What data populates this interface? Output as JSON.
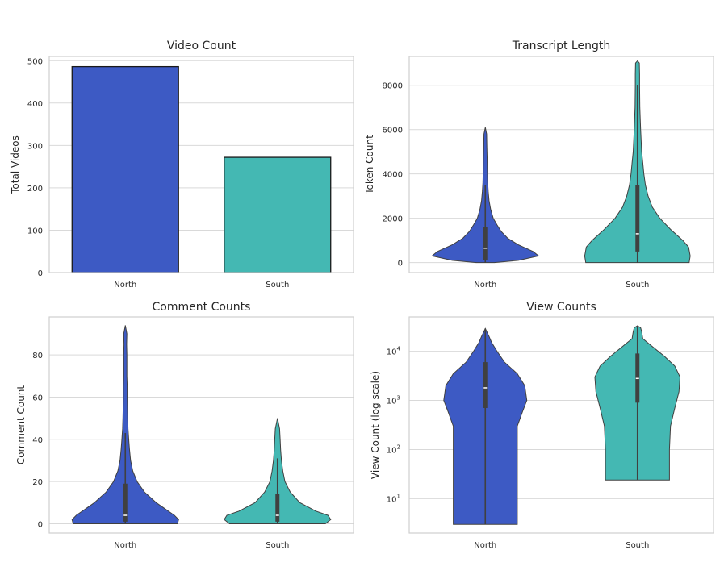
{
  "colors": {
    "north": "#3D5AC4",
    "south": "#44B8B3",
    "outline": "#404040"
  },
  "chart_data": [
    {
      "type": "bar",
      "title": "Video Count",
      "xlabel": "",
      "ylabel": "Total Videos",
      "categories": [
        "North",
        "South"
      ],
      "values": [
        486,
        272
      ],
      "ylim": [
        0,
        510
      ],
      "yticks": [
        0,
        100,
        200,
        300,
        400,
        500
      ],
      "grid": true
    },
    {
      "type": "violin",
      "title": "Transcript Length",
      "xlabel": "",
      "ylabel": "Token Count",
      "categories": [
        "North",
        "South"
      ],
      "ylim": [
        -450,
        9300
      ],
      "yticks": [
        0,
        2000,
        4000,
        6000,
        8000
      ],
      "grid": true,
      "groups": [
        {
          "name": "North",
          "q1": 100,
          "median": 650,
          "q3": 1600,
          "whisker_low": 0,
          "whisker_high": 3500,
          "kde_y": [
            0,
            100,
            300,
            500,
            800,
            1100,
            1400,
            1700,
            2000,
            2400,
            2800,
            3200,
            3600,
            4000,
            4600,
            5200,
            5800,
            6100
          ],
          "kde_w": [
            0.17,
            0.62,
            1.0,
            0.9,
            0.62,
            0.42,
            0.3,
            0.22,
            0.15,
            0.1,
            0.07,
            0.055,
            0.045,
            0.04,
            0.035,
            0.03,
            0.025,
            0.0
          ]
        },
        {
          "name": "South",
          "q1": 500,
          "median": 1300,
          "q3": 3500,
          "whisker_low": 0,
          "whisker_high": 8000,
          "kde_y": [
            0,
            300,
            700,
            1000,
            1500,
            2000,
            2500,
            3000,
            3500,
            4000,
            4500,
            5000,
            6000,
            7000,
            8000,
            8500,
            9000,
            9100
          ],
          "kde_w": [
            0.97,
            0.99,
            0.96,
            0.85,
            0.62,
            0.42,
            0.28,
            0.2,
            0.15,
            0.12,
            0.1,
            0.08,
            0.06,
            0.045,
            0.04,
            0.04,
            0.035,
            0.0
          ]
        }
      ]
    },
    {
      "type": "violin",
      "title": "Comment Counts",
      "xlabel": "",
      "ylabel": "Comment Count",
      "categories": [
        "North",
        "South"
      ],
      "ylim": [
        -4.4,
        98
      ],
      "yticks": [
        0,
        20,
        40,
        60,
        80
      ],
      "grid": true,
      "groups": [
        {
          "name": "North",
          "q1": 1,
          "median": 4,
          "q3": 19,
          "whisker_low": 0,
          "whisker_high": 43,
          "kde_y": [
            0,
            2,
            4,
            7,
            10,
            15,
            20,
            25,
            30,
            35,
            40,
            45,
            50,
            55,
            60,
            65,
            70,
            75,
            80,
            85,
            90,
            94
          ],
          "kde_w": [
            0.98,
            1.0,
            0.92,
            0.75,
            0.58,
            0.36,
            0.22,
            0.14,
            0.1,
            0.08,
            0.065,
            0.05,
            0.045,
            0.04,
            0.035,
            0.035,
            0.03,
            0.03,
            0.03,
            0.025,
            0.03,
            0.0
          ]
        },
        {
          "name": "South",
          "q1": 1,
          "median": 4,
          "q3": 14,
          "whisker_low": 0,
          "whisker_high": 31,
          "kde_y": [
            0,
            2,
            4,
            6,
            10,
            15,
            20,
            25,
            30,
            35,
            40,
            45,
            50
          ],
          "kde_w": [
            0.9,
            1.0,
            0.95,
            0.72,
            0.42,
            0.24,
            0.14,
            0.1,
            0.075,
            0.06,
            0.05,
            0.04,
            0.0
          ]
        }
      ]
    },
    {
      "type": "violin",
      "title": "View Counts",
      "xlabel": "",
      "ylabel": "View Count (log scale)",
      "categories": [
        "North",
        "South"
      ],
      "scale": "log",
      "ylim": [
        2.0,
        50000
      ],
      "yticks": [
        10,
        100,
        1000,
        10000
      ],
      "ytick_labels": [
        [
          "10",
          "1"
        ],
        [
          "10",
          "2"
        ],
        [
          "10",
          "3"
        ],
        [
          "10",
          "4"
        ]
      ],
      "grid": true,
      "groups": [
        {
          "name": "North",
          "q1": 700,
          "median": 1800,
          "q3": 6000,
          "whisker_low": 3,
          "whisker_high": 29000,
          "kde_y": [
            3,
            30,
            300,
            600,
            1000,
            2000,
            3500,
            6000,
            10000,
            15000,
            20000,
            29000
          ],
          "kde_w": [
            0.6,
            0.6,
            0.6,
            0.7,
            0.78,
            0.74,
            0.6,
            0.36,
            0.22,
            0.12,
            0.07,
            0.0
          ]
        },
        {
          "name": "South",
          "q1": 900,
          "median": 2800,
          "q3": 9000,
          "whisker_low": 24,
          "whisker_high": 33000,
          "kde_y": [
            24,
            30,
            100,
            300,
            700,
            1500,
            3000,
            5000,
            8000,
            12000,
            18000,
            25000,
            30000,
            33000
          ],
          "kde_w": [
            0.6,
            0.6,
            0.6,
            0.62,
            0.7,
            0.78,
            0.8,
            0.7,
            0.5,
            0.3,
            0.1,
            0.08,
            0.06,
            0.0
          ]
        }
      ]
    }
  ]
}
